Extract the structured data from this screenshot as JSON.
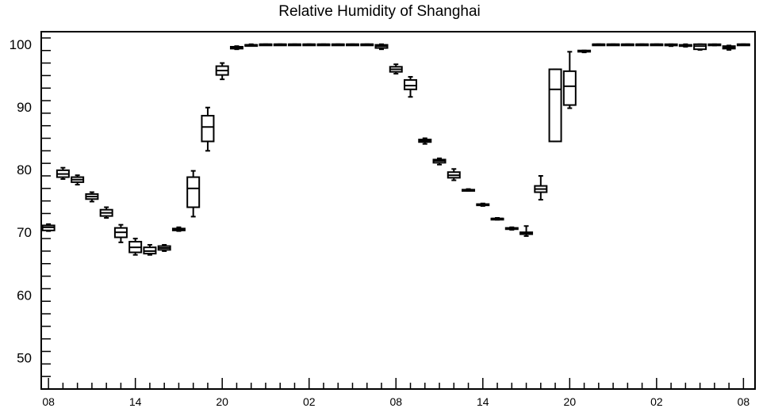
{
  "chart_data": {
    "type": "box",
    "title": "Relative Humidity of Shanghai",
    "xlabel": "",
    "ylabel": "",
    "ylim": [
      45,
      102
    ],
    "yticks": [
      50,
      60,
      70,
      80,
      90,
      100
    ],
    "xticks": [
      {
        "hour": 0,
        "label": "08"
      },
      {
        "hour": 6,
        "label": "14"
      },
      {
        "hour": 12,
        "label": "20"
      },
      {
        "hour": 18,
        "label": "02"
      },
      {
        "hour": 24,
        "label": "08"
      },
      {
        "hour": 30,
        "label": "14"
      },
      {
        "hour": 36,
        "label": "20"
      },
      {
        "hour": 42,
        "label": "02"
      },
      {
        "hour": 48,
        "label": "08"
      }
    ],
    "xlim": [
      -0.5,
      48.8
    ],
    "grid": false,
    "boxes": [
      {
        "hour": 0,
        "min": 70.2,
        "q1": 70.3,
        "median": 70.8,
        "q3": 71.1,
        "max": 71.3
      },
      {
        "hour": 1,
        "min": 78.5,
        "q1": 78.8,
        "median": 79.3,
        "q3": 79.9,
        "max": 80.3
      },
      {
        "hour": 2,
        "min": 77.6,
        "q1": 78.0,
        "median": 78.4,
        "q3": 78.8,
        "max": 79.1
      },
      {
        "hour": 3,
        "min": 74.9,
        "q1": 75.3,
        "median": 75.7,
        "q3": 76.1,
        "max": 76.4
      },
      {
        "hour": 4,
        "min": 72.3,
        "q1": 72.6,
        "median": 73.1,
        "q3": 73.6,
        "max": 74.0
      },
      {
        "hour": 5,
        "min": 68.4,
        "q1": 69.2,
        "median": 70.0,
        "q3": 70.7,
        "max": 71.2
      },
      {
        "hour": 6,
        "min": 66.4,
        "q1": 66.8,
        "median": 67.6,
        "q3": 68.5,
        "max": 69.0
      },
      {
        "hour": 7,
        "min": 66.4,
        "q1": 66.6,
        "median": 67.0,
        "q3": 67.6,
        "max": 68.0
      },
      {
        "hour": 8,
        "min": 67.0,
        "q1": 67.2,
        "median": 67.5,
        "q3": 67.8,
        "max": 68.0
      },
      {
        "hour": 9,
        "min": 70.2,
        "q1": 70.3,
        "median": 70.5,
        "q3": 70.6,
        "max": 70.8
      },
      {
        "hour": 10,
        "min": 72.5,
        "q1": 74.0,
        "median": 77.0,
        "q3": 78.8,
        "max": 79.8
      },
      {
        "hour": 11,
        "min": 83.0,
        "q1": 84.5,
        "median": 86.8,
        "q3": 88.6,
        "max": 89.9
      },
      {
        "hour": 12,
        "min": 94.4,
        "q1": 95.1,
        "median": 95.8,
        "q3": 96.5,
        "max": 97.0
      },
      {
        "hour": 13,
        "min": 99.2,
        "q1": 99.3,
        "median": 99.5,
        "q3": 99.6,
        "max": 99.7
      },
      {
        "hour": 14,
        "min": 99.8,
        "q1": 99.8,
        "median": 99.9,
        "q3": 99.9,
        "max": 100.0
      },
      {
        "hour": 15,
        "min": 99.9,
        "q1": 100.0,
        "median": 100.0,
        "q3": 100.0,
        "max": 100.0
      },
      {
        "hour": 16,
        "min": 99.9,
        "q1": 100.0,
        "median": 100.0,
        "q3": 100.0,
        "max": 100.0
      },
      {
        "hour": 17,
        "min": 99.9,
        "q1": 100.0,
        "median": 100.0,
        "q3": 100.0,
        "max": 100.0
      },
      {
        "hour": 18,
        "min": 99.9,
        "q1": 100.0,
        "median": 100.0,
        "q3": 100.0,
        "max": 100.0
      },
      {
        "hour": 19,
        "min": 99.9,
        "q1": 100.0,
        "median": 100.0,
        "q3": 100.0,
        "max": 100.0
      },
      {
        "hour": 20,
        "min": 99.9,
        "q1": 100.0,
        "median": 100.0,
        "q3": 100.0,
        "max": 100.0
      },
      {
        "hour": 21,
        "min": 99.9,
        "q1": 100.0,
        "median": 100.0,
        "q3": 100.0,
        "max": 100.0
      },
      {
        "hour": 22,
        "min": 99.9,
        "q1": 100.0,
        "median": 100.0,
        "q3": 100.0,
        "max": 100.0
      },
      {
        "hour": 23,
        "min": 99.2,
        "q1": 99.4,
        "median": 99.7,
        "q3": 99.9,
        "max": 100.0
      },
      {
        "hour": 24,
        "min": 95.3,
        "q1": 95.6,
        "median": 96.0,
        "q3": 96.4,
        "max": 96.8
      },
      {
        "hour": 25,
        "min": 91.6,
        "q1": 92.8,
        "median": 93.4,
        "q3": 94.3,
        "max": 94.8
      },
      {
        "hour": 26,
        "min": 84.1,
        "q1": 84.4,
        "median": 84.6,
        "q3": 84.8,
        "max": 85.0
      },
      {
        "hour": 27,
        "min": 80.8,
        "q1": 81.1,
        "median": 81.4,
        "q3": 81.6,
        "max": 81.8
      },
      {
        "hour": 28,
        "min": 78.3,
        "q1": 78.7,
        "median": 79.1,
        "q3": 79.6,
        "max": 80.1
      },
      {
        "hour": 29,
        "min": 76.6,
        "q1": 76.6,
        "median": 76.7,
        "q3": 76.8,
        "max": 76.9
      },
      {
        "hour": 30,
        "min": 74.2,
        "q1": 74.3,
        "median": 74.4,
        "q3": 74.5,
        "max": 74.6
      },
      {
        "hour": 31,
        "min": 72.0,
        "q1": 72.1,
        "median": 72.2,
        "q3": 72.2,
        "max": 72.3
      },
      {
        "hour": 32,
        "min": 70.4,
        "q1": 70.5,
        "median": 70.6,
        "q3": 70.7,
        "max": 70.8
      },
      {
        "hour": 33,
        "min": 69.4,
        "q1": 69.7,
        "median": 69.9,
        "q3": 70.0,
        "max": 71.0
      },
      {
        "hour": 34,
        "min": 75.2,
        "q1": 76.4,
        "median": 76.9,
        "q3": 77.4,
        "max": 79.0
      },
      {
        "hour": 35,
        "min": 84.5,
        "q1": 84.5,
        "median": 92.8,
        "q3": 96.0,
        "max": 96.0
      },
      {
        "hour": 36,
        "min": 89.8,
        "q1": 90.3,
        "median": 93.3,
        "q3": 95.7,
        "max": 98.8
      },
      {
        "hour": 37,
        "min": 98.7,
        "q1": 98.8,
        "median": 98.9,
        "q3": 99.0,
        "max": 99.0
      },
      {
        "hour": 38,
        "min": 99.9,
        "q1": 100.0,
        "median": 100.0,
        "q3": 100.0,
        "max": 100.0
      },
      {
        "hour": 39,
        "min": 99.9,
        "q1": 100.0,
        "median": 100.0,
        "q3": 100.0,
        "max": 100.0
      },
      {
        "hour": 40,
        "min": 99.9,
        "q1": 100.0,
        "median": 100.0,
        "q3": 100.0,
        "max": 100.0
      },
      {
        "hour": 41,
        "min": 99.9,
        "q1": 100.0,
        "median": 100.0,
        "q3": 100.0,
        "max": 100.0
      },
      {
        "hour": 42,
        "min": 99.9,
        "q1": 100.0,
        "median": 100.0,
        "q3": 100.0,
        "max": 100.0
      },
      {
        "hour": 43,
        "min": 99.7,
        "q1": 99.8,
        "median": 99.9,
        "q3": 100.0,
        "max": 100.0
      },
      {
        "hour": 44,
        "min": 99.6,
        "q1": 99.7,
        "median": 99.8,
        "q3": 99.9,
        "max": 100.0
      },
      {
        "hour": 45,
        "min": 99.1,
        "q1": 99.2,
        "median": 99.7,
        "q3": 100.0,
        "max": 100.0
      },
      {
        "hour": 46,
        "min": 99.8,
        "q1": 99.9,
        "median": 99.9,
        "q3": 100.0,
        "max": 100.0
      },
      {
        "hour": 47,
        "min": 99.1,
        "q1": 99.3,
        "median": 99.5,
        "q3": 99.7,
        "max": 99.8
      },
      {
        "hour": 48,
        "min": 99.9,
        "q1": 100.0,
        "median": 100.0,
        "q3": 100.0,
        "max": 100.0
      }
    ]
  }
}
